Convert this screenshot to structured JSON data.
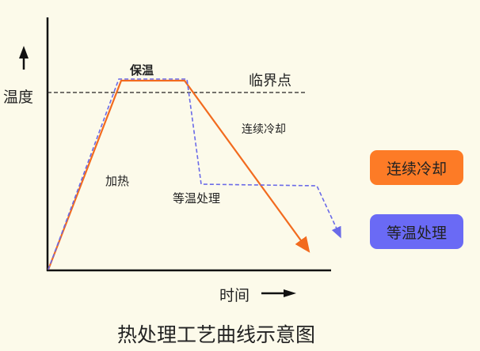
{
  "y_axis_label": "温度",
  "x_axis_label": "时间",
  "title": "热处理工艺曲线示意图",
  "annotations": {
    "holding": "保温",
    "critical_point": "临界点",
    "continuous_cooling": "连续冷却",
    "heating": "加热",
    "isothermal": "等温处理"
  },
  "legend": [
    {
      "label": "连续冷却",
      "color": "#fd7b26"
    },
    {
      "label": "等温处理",
      "color": "#6a6af5"
    }
  ],
  "colors": {
    "continuous_cooling": "#f26b1f",
    "isothermal": "#6a6ae8",
    "critical_line": "#222222",
    "axis": "#111111"
  }
}
